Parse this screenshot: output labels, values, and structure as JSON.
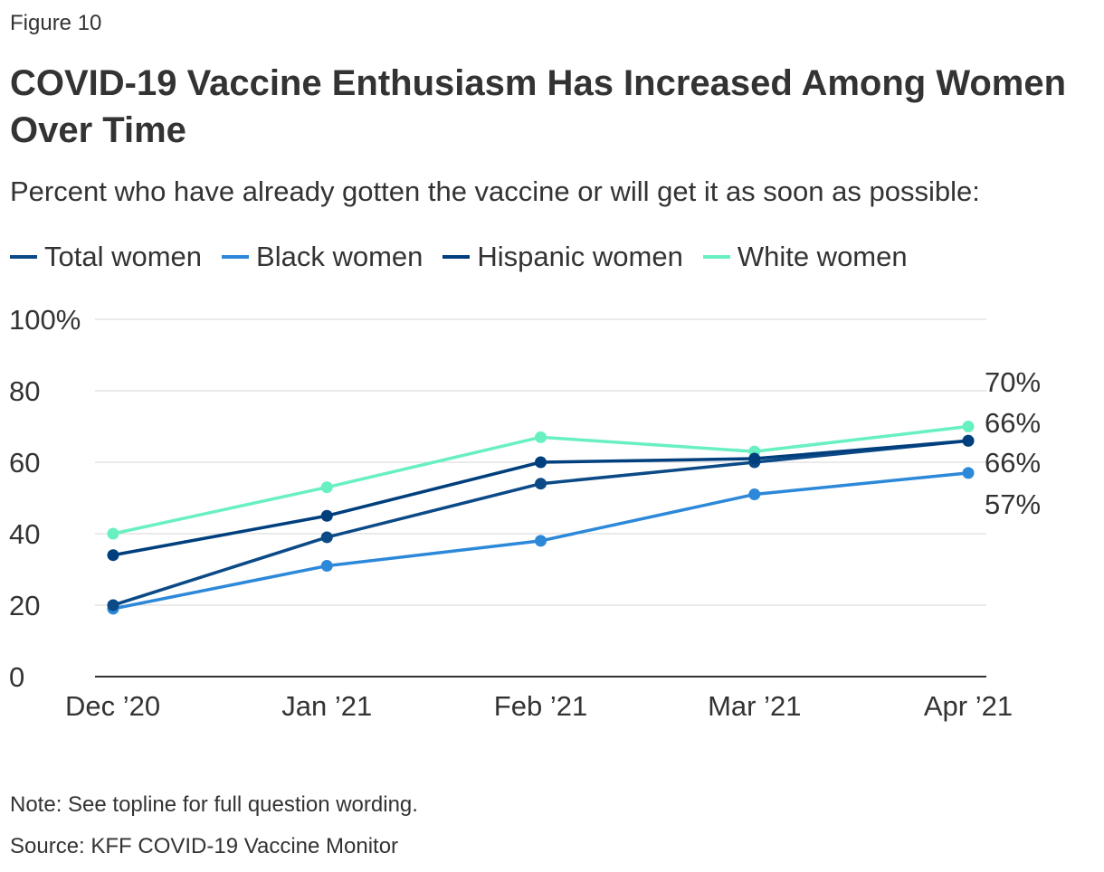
{
  "figure_label": "Figure 10",
  "chart_data": {
    "type": "line",
    "title": "COVID-19 Vaccine Enthusiasm Has Increased Among Women Over Time",
    "subtitle": "Percent who have already gotten the vaccine or will get it as soon as possible:",
    "categories": [
      "Dec ’20",
      "Jan ’21",
      "Feb ’21",
      "Mar ’21",
      "Apr ’21"
    ],
    "ylim": [
      0,
      100
    ],
    "yticks": [
      0,
      20,
      40,
      60,
      80,
      100
    ],
    "ytick_labels": [
      "0",
      "20",
      "40",
      "60",
      "80",
      "100%"
    ],
    "grid": true,
    "legend_position": "top-left",
    "series": [
      {
        "name": "Total women",
        "color": "#0b4a86",
        "values": [
          20,
          39,
          54,
          60,
          66
        ]
      },
      {
        "name": "Black women",
        "color": "#2c88d9",
        "values": [
          19,
          31,
          38,
          51,
          57
        ]
      },
      {
        "name": "Hispanic women",
        "color": "#003f7d",
        "values": [
          34,
          45,
          60,
          61,
          66
        ]
      },
      {
        "name": "White women",
        "color": "#69f0c0",
        "values": [
          40,
          53,
          67,
          63,
          70
        ]
      }
    ],
    "end_labels": [
      "70%",
      "66%",
      "66%",
      "57%"
    ],
    "xlabel": "",
    "ylabel": ""
  },
  "note": "Note: See topline for full question wording.",
  "source": "Source: KFF COVID-19 Vaccine Monitor"
}
